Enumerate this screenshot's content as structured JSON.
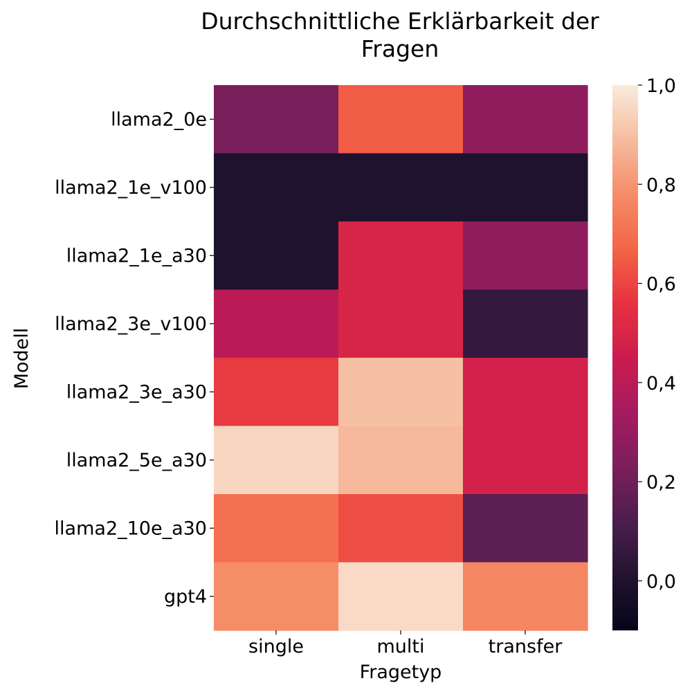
{
  "chart_data": {
    "type": "heatmap",
    "title_lines": [
      "Durchschnittliche Erklärbarkeit der",
      "Fragen"
    ],
    "xlabel": "Fragetyp",
    "ylabel": "Modell",
    "x_categories": [
      "single",
      "multi",
      "transfer"
    ],
    "y_categories": [
      "llama2_0e",
      "llama2_1e_v100",
      "llama2_1e_a30",
      "llama2_3e_v100",
      "llama2_3e_a30",
      "llama2_5e_a30",
      "llama2_10e_a30",
      "gpt4"
    ],
    "values": [
      [
        0.22,
        0.65,
        0.28
      ],
      [
        0.0,
        0.0,
        0.0
      ],
      [
        0.0,
        0.5,
        0.28
      ],
      [
        0.4,
        0.5,
        0.06
      ],
      [
        0.58,
        0.9,
        0.48
      ],
      [
        0.95,
        0.88,
        0.48
      ],
      [
        0.7,
        0.62,
        0.16
      ],
      [
        0.78,
        0.96,
        0.76
      ]
    ],
    "colorbar": {
      "min": -0.1,
      "max": 1.0,
      "ticks": [
        0.0,
        0.2,
        0.4,
        0.6,
        0.8,
        1.0
      ],
      "tick_labels": [
        "0,0",
        "0,2",
        "0,4",
        "0,6",
        "0,8",
        "1,0"
      ],
      "colormap": "rocket"
    }
  }
}
